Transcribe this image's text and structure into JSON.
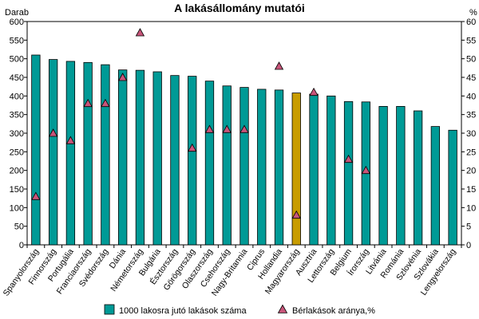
{
  "chart_data": {
    "type": "bar",
    "title": "A lakásállomány mutatói",
    "y_left_label": "Darab",
    "y_right_label": "%",
    "y_left_lim": [
      0,
      600
    ],
    "y_left_ticks": [
      0,
      50,
      100,
      150,
      200,
      250,
      300,
      350,
      400,
      450,
      500,
      550,
      600
    ],
    "y_right_lim": [
      0,
      60
    ],
    "y_right_ticks": [
      0,
      5,
      10,
      15,
      20,
      25,
      30,
      35,
      40,
      45,
      50,
      55,
      60
    ],
    "grid": false,
    "legend_position": "bottom",
    "categories": [
      "Spanyolország",
      "Finnország",
      "Portugália",
      "Franciaország",
      "Svédország",
      "Dánia",
      "Németország",
      "Bulgária",
      "Észtország",
      "Görögország",
      "Olaszország",
      "Csehország",
      "Nagy-Britannia",
      "Ciprus",
      "Hollandia",
      "Magyarország",
      "Ausztria",
      "Lettország",
      "Belgium",
      "Írország",
      "Litvánia",
      "Románia",
      "Szlovénia",
      "Szlovákia",
      "Lengyelország"
    ],
    "series": [
      {
        "name": "1000 lakosra jutó lakások száma",
        "type": "bar",
        "axis": "left",
        "values": [
          510,
          498,
          493,
          490,
          484,
          470,
          469,
          465,
          455,
          453,
          440,
          427,
          423,
          418,
          416,
          408,
          405,
          400,
          385,
          384,
          372,
          372,
          360,
          318,
          308
        ]
      },
      {
        "name": "Bérlakások aránya,%",
        "type": "scatter",
        "axis": "right",
        "marker": "triangle",
        "values": [
          13,
          30,
          28,
          38,
          38,
          45,
          57,
          null,
          null,
          26,
          31,
          31,
          31,
          null,
          48,
          8,
          41,
          null,
          23,
          20,
          null,
          null,
          null,
          null,
          null
        ]
      }
    ],
    "highlight_category": "Magyarország",
    "colors": {
      "bar": "#009a96",
      "highlight_bar": "#c89c00",
      "marker": "#c8557a"
    }
  }
}
